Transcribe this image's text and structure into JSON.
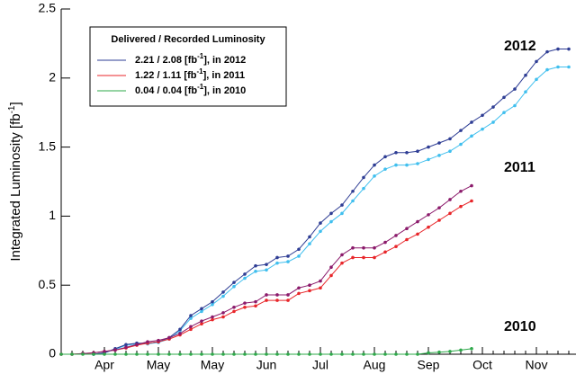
{
  "chart_data": {
    "type": "line",
    "y_label": {
      "text": "Integrated Luminosity [fb",
      "sup": "-1",
      "suffix": "]"
    },
    "categories": [
      null,
      null,
      null,
      null,
      "Apr",
      null,
      null,
      null,
      null,
      "May",
      null,
      null,
      null,
      null,
      "May",
      null,
      null,
      null,
      null,
      "Jun",
      null,
      null,
      null,
      null,
      "Jul",
      null,
      null,
      null,
      null,
      "Aug",
      null,
      null,
      null,
      null,
      "Sep",
      null,
      null,
      null,
      null,
      "Oct",
      null,
      null,
      null,
      null,
      "Nov",
      null,
      null,
      null
    ],
    "ylim": [
      0,
      2.5
    ],
    "yticks": [
      0,
      0.5,
      1,
      1.5,
      2,
      2.5
    ],
    "legend_title": "Delivered / Recorded Luminosity",
    "legend": [
      {
        "text": "2.21 / 2.08 [fb",
        "sup": "-1",
        "suffix": "], in 2012",
        "color": "#2e3d94"
      },
      {
        "text": "1.22 / 1.11 [fb",
        "sup": "-1",
        "suffix": "], in 2011",
        "color": "#e8262a"
      },
      {
        "text": "0.04 / 0.04 [fb",
        "sup": "-1",
        "suffix": "], in 2010",
        "color": "#2ea84a"
      }
    ],
    "annotations": [
      {
        "text": "2012",
        "color": "#2e4a9e"
      },
      {
        "text": "2011",
        "color": "#8b1a6b"
      },
      {
        "text": "2010",
        "color": "#2ea84a"
      }
    ],
    "series": [
      {
        "color": "#40bfee",
        "values": [
          null,
          null,
          null,
          0,
          0.01,
          0.035,
          0.065,
          0.075,
          0.075,
          0.085,
          0.11,
          0.17,
          0.26,
          0.31,
          0.36,
          0.42,
          0.49,
          0.55,
          0.6,
          0.61,
          0.66,
          0.67,
          0.71,
          0.8,
          0.89,
          0.96,
          1.02,
          1.11,
          1.2,
          1.29,
          1.34,
          1.37,
          1.37,
          1.38,
          1.41,
          1.44,
          1.47,
          1.52,
          1.58,
          1.63,
          1.68,
          1.75,
          1.8,
          1.9,
          1.99,
          2.06,
          2.08,
          2.08
        ]
      },
      {
        "color": "#2e3d94",
        "values": [
          null,
          null,
          null,
          0,
          0.01,
          0.04,
          0.07,
          0.08,
          0.08,
          0.09,
          0.12,
          0.18,
          0.28,
          0.33,
          0.38,
          0.45,
          0.52,
          0.58,
          0.64,
          0.65,
          0.7,
          0.71,
          0.76,
          0.85,
          0.95,
          1.02,
          1.08,
          1.18,
          1.28,
          1.37,
          1.43,
          1.46,
          1.46,
          1.47,
          1.5,
          1.53,
          1.56,
          1.62,
          1.68,
          1.73,
          1.79,
          1.86,
          1.92,
          2.02,
          2.12,
          2.19,
          2.21,
          2.21
        ]
      },
      {
        "color": "#e8262a",
        "values": [
          0,
          0,
          0.005,
          0.01,
          0.02,
          0.03,
          0.045,
          0.065,
          0.08,
          0.09,
          0.11,
          0.14,
          0.18,
          0.22,
          0.25,
          0.27,
          0.31,
          0.34,
          0.35,
          0.39,
          0.39,
          0.39,
          0.44,
          0.46,
          0.48,
          0.57,
          0.66,
          0.7,
          0.7,
          0.7,
          0.74,
          0.78,
          0.83,
          0.87,
          0.92,
          0.97,
          1.02,
          1.07,
          1.11,
          null,
          null,
          null,
          null,
          null,
          null,
          null,
          null,
          null
        ]
      },
      {
        "color": "#8b1a6b",
        "values": [
          0,
          0,
          0.005,
          0.01,
          0.02,
          0.03,
          0.05,
          0.07,
          0.09,
          0.1,
          0.12,
          0.15,
          0.2,
          0.24,
          0.27,
          0.3,
          0.34,
          0.37,
          0.38,
          0.43,
          0.43,
          0.43,
          0.48,
          0.5,
          0.53,
          0.63,
          0.72,
          0.77,
          0.77,
          0.77,
          0.81,
          0.86,
          0.91,
          0.96,
          1.01,
          1.06,
          1.12,
          1.18,
          1.22,
          null,
          null,
          null,
          null,
          null,
          null,
          null,
          null,
          null
        ]
      },
      {
        "color": "#2ea84a",
        "values": [
          0,
          0,
          0,
          0,
          0,
          0,
          0,
          0,
          0,
          0,
          0,
          0,
          0,
          0,
          0,
          0,
          0,
          0,
          0,
          0,
          0,
          0,
          0,
          0,
          0,
          0,
          0,
          0,
          0,
          0,
          0,
          0,
          0,
          0,
          0.01,
          0.015,
          0.02,
          0.03,
          0.04,
          null,
          null,
          null,
          null,
          null,
          null,
          null,
          null,
          null
        ]
      }
    ]
  }
}
